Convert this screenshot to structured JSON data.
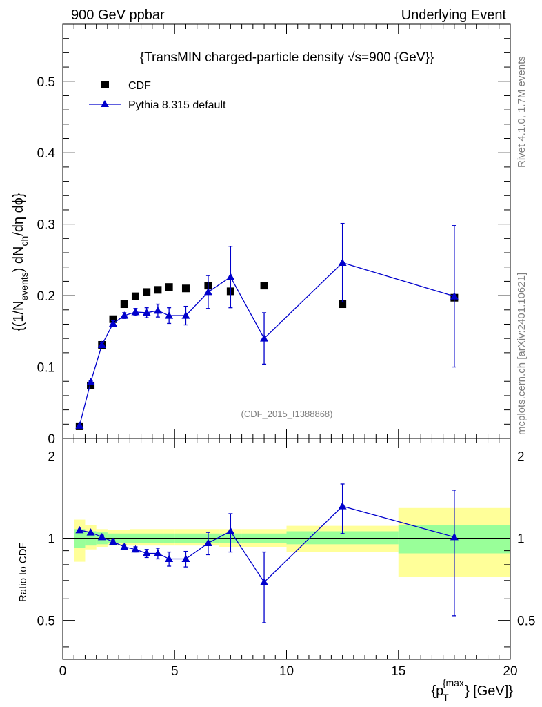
{
  "header": {
    "left": "900 GeV ppbar",
    "right": "Underlying Event"
  },
  "side": {
    "rivet": "Rivet 4.1.0,  1.7M events",
    "mcplots": "mcplots.cern.ch [arXiv:2401.10621]"
  },
  "colors": {
    "cdf": "#000000",
    "pythia": "#0000cc",
    "band_outer": "#ffff99",
    "band_inner": "#99ff99"
  },
  "chart_data": [
    {
      "type": "scatter",
      "title": "{TransMIN charged-particle density √s=900 {GeV}}",
      "ylabel_parts": {
        "a": "{(1/N",
        "b": "events",
        "c": ") dN",
        "d": "ch",
        "e": "/dη dϕ}"
      },
      "ylim": [
        0,
        0.58
      ],
      "xlim": [
        0,
        20
      ],
      "yticks": [
        "0",
        "0.1",
        "0.2",
        "0.3",
        "0.4",
        "0.5"
      ],
      "annotation": "(CDF_2015_I1388868)",
      "legend": [
        "CDF",
        "Pythia 8.315 default"
      ],
      "series": [
        {
          "name": "CDF",
          "marker": "square",
          "x": [
            0.75,
            1.25,
            1.75,
            2.25,
            2.75,
            3.25,
            3.75,
            4.25,
            4.75,
            5.5,
            6.5,
            7.5,
            9.0,
            12.5,
            17.5
          ],
          "y": [
            0.017,
            0.074,
            0.131,
            0.167,
            0.188,
            0.199,
            0.205,
            0.208,
            0.212,
            0.21,
            0.214,
            0.206,
            0.214,
            0.188,
            0.197
          ]
        },
        {
          "name": "Pythia 8.315 default",
          "marker": "triangle",
          "x": [
            0.75,
            1.25,
            1.75,
            2.25,
            2.75,
            3.25,
            3.75,
            4.25,
            4.75,
            5.5,
            6.5,
            7.5,
            9.0,
            12.5,
            17.5
          ],
          "y": [
            0.018,
            0.079,
            0.131,
            0.161,
            0.172,
            0.177,
            0.176,
            0.179,
            0.172,
            0.172,
            0.205,
            0.226,
            0.14,
            0.246,
            0.199
          ],
          "err": [
            0.001,
            0.002,
            0.003,
            0.004,
            0.004,
            0.005,
            0.007,
            0.009,
            0.011,
            0.013,
            0.023,
            0.043,
            0.036,
            0.055,
            0.099
          ]
        }
      ]
    },
    {
      "type": "scatter",
      "ylabel": "Ratio to CDF",
      "xlabel_parts": {
        "a": "{p",
        "sub": "T",
        "sup": "{max",
        "b": "} [GeV]}"
      },
      "xlim": [
        0,
        20
      ],
      "ylim": [
        0.36,
        2.32
      ],
      "xticks": [
        "0",
        "5",
        "10",
        "15",
        "20"
      ],
      "yticks": [
        "0.5",
        "1",
        "2"
      ],
      "ref_line": 1,
      "bins": [
        {
          "lo": 0.5,
          "hi": 1.0,
          "inner": [
            0.92,
            1.08
          ],
          "outer": [
            0.82,
            1.17
          ]
        },
        {
          "lo": 1.0,
          "hi": 1.5,
          "inner": [
            0.94,
            1.06
          ],
          "outer": [
            0.91,
            1.12
          ]
        },
        {
          "lo": 1.5,
          "hi": 2.0,
          "inner": [
            0.95,
            1.05
          ],
          "outer": [
            0.93,
            1.08
          ]
        },
        {
          "lo": 2.0,
          "hi": 2.5,
          "inner": [
            0.96,
            1.04
          ],
          "outer": [
            0.94,
            1.07
          ]
        },
        {
          "lo": 2.5,
          "hi": 3.0,
          "inner": [
            0.96,
            1.04
          ],
          "outer": [
            0.94,
            1.07
          ]
        },
        {
          "lo": 3.0,
          "hi": 3.5,
          "inner": [
            0.96,
            1.04
          ],
          "outer": [
            0.94,
            1.08
          ]
        },
        {
          "lo": 3.5,
          "hi": 4.0,
          "inner": [
            0.96,
            1.04
          ],
          "outer": [
            0.94,
            1.08
          ]
        },
        {
          "lo": 4.0,
          "hi": 4.5,
          "inner": [
            0.96,
            1.04
          ],
          "outer": [
            0.94,
            1.08
          ]
        },
        {
          "lo": 4.5,
          "hi": 5.0,
          "inner": [
            0.96,
            1.04
          ],
          "outer": [
            0.94,
            1.08
          ]
        },
        {
          "lo": 5.0,
          "hi": 6.0,
          "inner": [
            0.96,
            1.04
          ],
          "outer": [
            0.94,
            1.08
          ]
        },
        {
          "lo": 6.0,
          "hi": 7.0,
          "inner": [
            0.96,
            1.04
          ],
          "outer": [
            0.94,
            1.08
          ]
        },
        {
          "lo": 7.0,
          "hi": 8.0,
          "inner": [
            0.96,
            1.04
          ],
          "outer": [
            0.93,
            1.08
          ]
        },
        {
          "lo": 8.0,
          "hi": 10.0,
          "inner": [
            0.96,
            1.04
          ],
          "outer": [
            0.93,
            1.08
          ]
        },
        {
          "lo": 10.0,
          "hi": 15.0,
          "inner": [
            0.95,
            1.06
          ],
          "outer": [
            0.89,
            1.11
          ]
        },
        {
          "lo": 15.0,
          "hi": 20.0,
          "inner": [
            0.88,
            1.12
          ],
          "outer": [
            0.72,
            1.29
          ]
        }
      ],
      "series": [
        {
          "name": "Pythia 8.315 default",
          "x": [
            0.75,
            1.25,
            1.75,
            2.25,
            2.75,
            3.25,
            3.75,
            4.25,
            4.75,
            5.5,
            6.5,
            7.5,
            9.0,
            12.5,
            17.5
          ],
          "y": [
            1.07,
            1.05,
            1.01,
            0.97,
            0.93,
            0.91,
            0.88,
            0.88,
            0.84,
            0.84,
            0.96,
            1.06,
            0.69,
            1.31,
            1.01
          ],
          "err": [
            0.005,
            0.01,
            0.015,
            0.015,
            0.015,
            0.02,
            0.03,
            0.04,
            0.05,
            0.055,
            0.09,
            0.17,
            0.2,
            0.27,
            0.49
          ]
        }
      ]
    }
  ]
}
